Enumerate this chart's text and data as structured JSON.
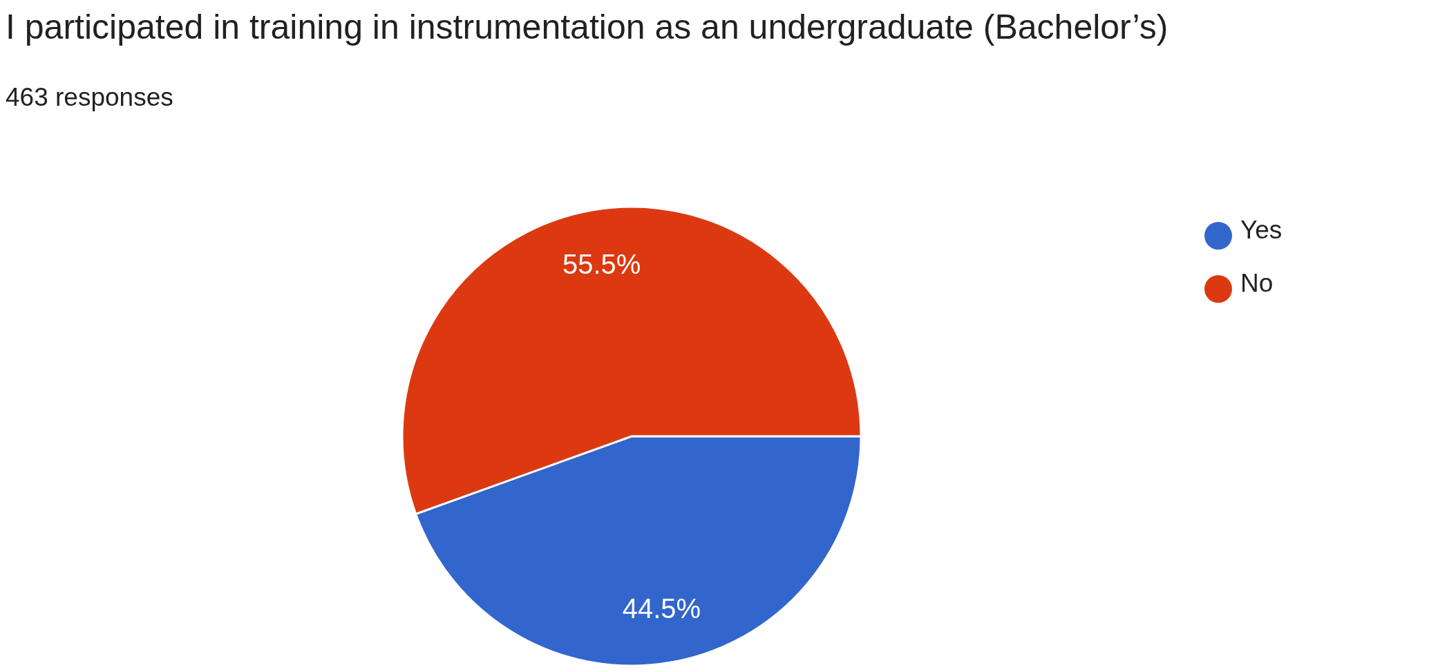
{
  "chart_data": {
    "type": "pie",
    "title": "I participated in training in instrumentation as an undergraduate (Bachelor’s)",
    "subtitle": "463 responses",
    "categories": [
      "Yes",
      "No"
    ],
    "values": [
      44.5,
      55.5
    ],
    "colors": [
      "#3366cc",
      "#dc3912"
    ],
    "value_labels": [
      "44.5%",
      "55.5%"
    ],
    "legend": "right"
  }
}
